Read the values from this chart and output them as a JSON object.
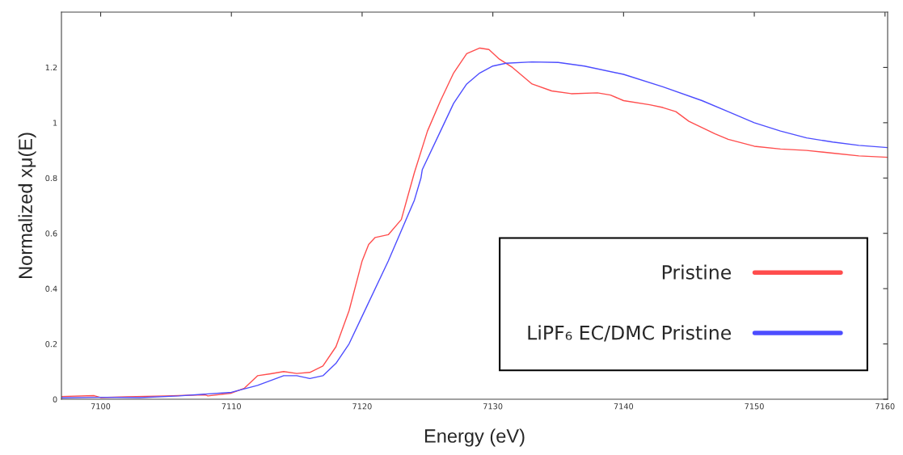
{
  "chart_data": {
    "type": "line",
    "xlabel": "Energy (eV)",
    "ylabel": "Normalized xμ(E)",
    "xlim": [
      7097,
      7160.2
    ],
    "ylim": [
      0,
      1.4
    ],
    "xticks": [
      7100,
      7110,
      7120,
      7130,
      7140,
      7150,
      7160
    ],
    "yticks": [
      0,
      0.2,
      0.4,
      0.6,
      0.8,
      1,
      1.2
    ],
    "grid": false,
    "legend": "bottom right",
    "line_style": "solid",
    "marker": "none",
    "series": [
      {
        "name": "Pristine",
        "color": "#ff4d4d",
        "x": [
          7097,
          7099.5,
          7100,
          7102,
          7105,
          7108,
          7108.2,
          7110,
          7111,
          7112,
          7113,
          7114,
          7115,
          7116,
          7117,
          7118,
          7119,
          7120,
          7120.5,
          7121,
          7122,
          7123,
          7124,
          7125,
          7126,
          7127,
          7128,
          7129,
          7129.7,
          7130.5,
          7131.5,
          7133,
          7134.5,
          7136,
          7138,
          7139,
          7140,
          7142,
          7143,
          7144,
          7145,
          7147,
          7148,
          7150,
          7152,
          7154,
          7156,
          7158,
          7160.2
        ],
        "values": [
          0.01,
          0.013,
          0.006,
          0.009,
          0.012,
          0.016,
          0.012,
          0.022,
          0.04,
          0.085,
          0.092,
          0.1,
          0.093,
          0.097,
          0.12,
          0.19,
          0.32,
          0.5,
          0.56,
          0.585,
          0.595,
          0.65,
          0.82,
          0.97,
          1.08,
          1.18,
          1.25,
          1.27,
          1.265,
          1.23,
          1.2,
          1.14,
          1.115,
          1.105,
          1.108,
          1.1,
          1.08,
          1.065,
          1.055,
          1.04,
          1.005,
          0.96,
          0.94,
          0.915,
          0.905,
          0.9,
          0.89,
          0.88,
          0.875
        ]
      },
      {
        "name": "LiPF₆ EC/DMC Pristine",
        "color": "#4d4dff",
        "x": [
          7097,
          7100,
          7103,
          7106,
          7110,
          7112,
          7114,
          7115,
          7116,
          7117,
          7118,
          7119,
          7120,
          7122,
          7124,
          7124.5,
          7124.6,
          7126,
          7127,
          7128,
          7129,
          7130,
          7131,
          7133,
          7135,
          7137,
          7140,
          7143,
          7146,
          7148,
          7150,
          7152,
          7154,
          7156,
          7158,
          7160.2
        ],
        "values": [
          0.005,
          0.007,
          0.006,
          0.012,
          0.025,
          0.05,
          0.085,
          0.085,
          0.075,
          0.085,
          0.13,
          0.2,
          0.3,
          0.5,
          0.72,
          0.8,
          0.83,
          0.97,
          1.07,
          1.14,
          1.18,
          1.205,
          1.215,
          1.22,
          1.218,
          1.205,
          1.175,
          1.13,
          1.08,
          1.04,
          1.0,
          0.97,
          0.945,
          0.93,
          0.918,
          0.91
        ]
      }
    ]
  }
}
